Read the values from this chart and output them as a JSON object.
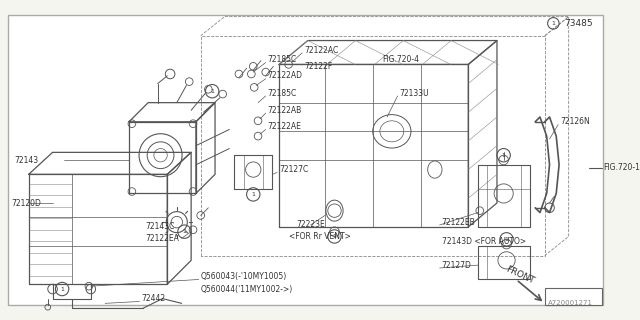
{
  "bg_color": "#f5f5f0",
  "border_color": "#aaaaaa",
  "line_color": "#555555",
  "text_color": "#333333",
  "fig_width": 6.4,
  "fig_height": 3.2,
  "dpi": 100,
  "bottom_text": "A720001271",
  "part_number_box": "73485",
  "fig720_4_label": "FIG.720-4",
  "fig720_1_label": "FIG.720-1"
}
